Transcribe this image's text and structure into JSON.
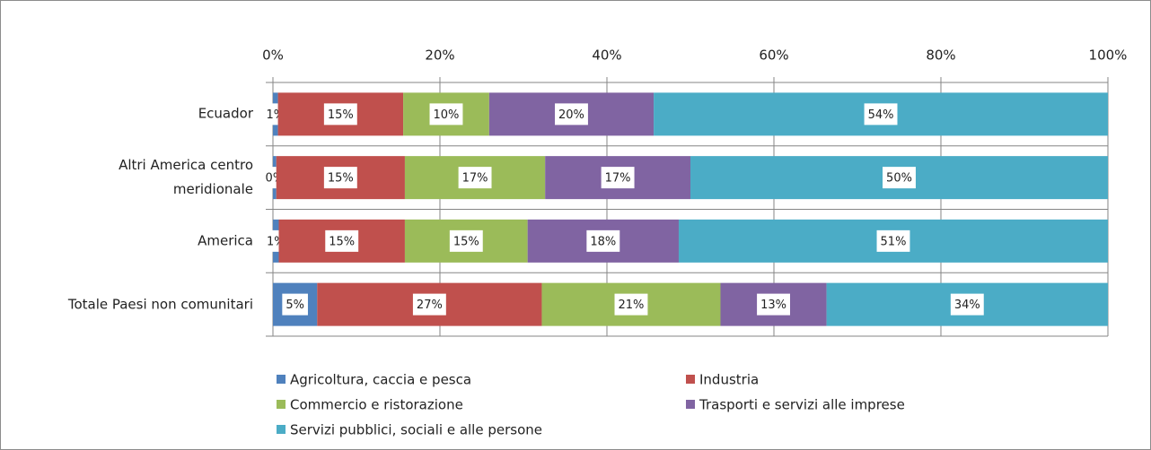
{
  "chart_data": {
    "type": "stacked-barh",
    "categories": [
      "Ecuador",
      "Altri America centro meridionale",
      "America",
      "Totale Paesi non comunitari"
    ],
    "series": [
      {
        "name": "Agricoltura, caccia e pesca",
        "color": "#4f81bd",
        "values": [
          0.6,
          0.4,
          0.7,
          5.3
        ],
        "value_labels": [
          "1%",
          "0%",
          "1%",
          "5%"
        ]
      },
      {
        "name": "Industria",
        "color": "#c0504d",
        "values": [
          15.0,
          15.4,
          15.1,
          26.9
        ],
        "value_labels": [
          "15%",
          "15%",
          "15%",
          "27%"
        ]
      },
      {
        "name": "Commercio e ristorazione",
        "color": "#9bbb59",
        "values": [
          10.3,
          16.8,
          14.7,
          21.4
        ],
        "value_labels": [
          "10%",
          "17%",
          "15%",
          "21%"
        ]
      },
      {
        "name": "Trasporti e servizi alle imprese",
        "color": "#8064a2",
        "values": [
          19.7,
          17.4,
          18.1,
          12.7
        ],
        "value_labels": [
          "20%",
          "17%",
          "18%",
          "13%"
        ]
      },
      {
        "name": "Servizi pubblici, sociali e alle persone",
        "color": "#4bacc6",
        "values": [
          54.4,
          50.0,
          51.4,
          33.7
        ],
        "value_labels": [
          "54%",
          "50%",
          "51%",
          "34%"
        ]
      }
    ],
    "xlim": [
      0,
      100
    ],
    "xticks": [
      {
        "value": 0,
        "label": "0%"
      },
      {
        "value": 20,
        "label": "20%"
      },
      {
        "value": 40,
        "label": "40%"
      },
      {
        "value": 60,
        "label": "60%"
      },
      {
        "value": 80,
        "label": "80%"
      },
      {
        "value": 100,
        "label": "100%"
      }
    ],
    "grid": true,
    "legend": "bottom"
  }
}
